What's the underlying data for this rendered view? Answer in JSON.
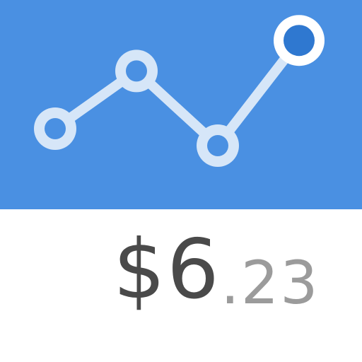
{
  "colors": {
    "panel": "#4A90E2",
    "line": "#D6E6F8",
    "node_fill": "#4A90E2",
    "highlight_ring": "#FFFFFF",
    "highlight_fill": "#2F78D0",
    "price_main": "#4A4A4A",
    "price_decimal": "#9B9B9B"
  },
  "icons": {
    "chart": "line-chart-icon"
  },
  "chart_data": {
    "type": "line",
    "x": [
      1,
      2,
      3,
      4
    ],
    "series": [
      {
        "values": [
          2.0,
          3.7,
          1.5,
          4.6
        ]
      }
    ],
    "highlighted_index": 3,
    "title": "",
    "xlabel": "",
    "ylabel": "",
    "ylim": [
      0,
      5
    ],
    "grid": false
  },
  "price": {
    "currency": "$",
    "whole": "6",
    "decimal": ".23"
  }
}
